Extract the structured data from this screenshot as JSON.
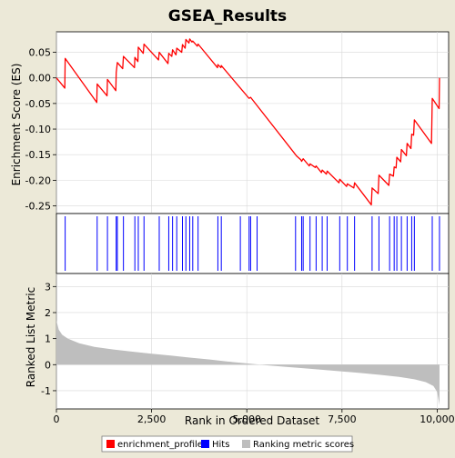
{
  "chart_data": {
    "type": "line",
    "title": "GSEA_Results",
    "xlabel": "Rank in Ordered Dataset",
    "xlim": [
      0,
      10300
    ],
    "xticks": [
      0,
      2500,
      5000,
      7500,
      10000
    ],
    "xtick_labels": [
      "0",
      "2,500",
      "5,000",
      "7,500",
      "10,000"
    ],
    "panels": {
      "enrichment": {
        "ylabel": "Enrichment Score (ES)",
        "ylim": [
          -0.265,
          0.09
        ],
        "yticks": [
          0.05,
          0.0,
          -0.05,
          -0.1,
          -0.15,
          -0.2,
          -0.25
        ],
        "ytick_labels": [
          "0.05",
          "0.00",
          "-0.05",
          "-0.10",
          "-0.15",
          "-0.20",
          "-0.25"
        ],
        "series": [
          {
            "name": "enrichment_profile",
            "color": "#FF0000",
            "points": [
              [
                0,
                0.0
              ],
              [
                220,
                -0.02
              ],
              [
                230,
                0.038
              ],
              [
                1060,
                -0.048
              ],
              [
                1070,
                -0.012
              ],
              [
                1330,
                -0.035
              ],
              [
                1340,
                -0.003
              ],
              [
                1560,
                -0.025
              ],
              [
                1570,
                0.01
              ],
              [
                1600,
                0.03
              ],
              [
                1740,
                0.018
              ],
              [
                1760,
                0.042
              ],
              [
                2050,
                0.02
              ],
              [
                2060,
                0.04
              ],
              [
                2140,
                0.032
              ],
              [
                2150,
                0.06
              ],
              [
                2280,
                0.048
              ],
              [
                2300,
                0.066
              ],
              [
                2680,
                0.035
              ],
              [
                2700,
                0.05
              ],
              [
                2930,
                0.028
              ],
              [
                2950,
                0.048
              ],
              [
                3030,
                0.042
              ],
              [
                3050,
                0.055
              ],
              [
                3140,
                0.045
              ],
              [
                3160,
                0.058
              ],
              [
                3290,
                0.05
              ],
              [
                3310,
                0.065
              ],
              [
                3380,
                0.058
              ],
              [
                3400,
                0.075
              ],
              [
                3480,
                0.068
              ],
              [
                3500,
                0.076
              ],
              [
                3560,
                0.07
              ],
              [
                3580,
                0.072
              ],
              [
                3700,
                0.062
              ],
              [
                3720,
                0.066
              ],
              [
                4230,
                0.02
              ],
              [
                4240,
                0.026
              ],
              [
                4320,
                0.02
              ],
              [
                4330,
                0.024
              ],
              [
                4830,
                -0.02
              ],
              [
                5060,
                -0.04
              ],
              [
                5100,
                -0.038
              ],
              [
                6280,
                -0.15
              ],
              [
                6300,
                -0.152
              ],
              [
                6420,
                -0.16
              ],
              [
                6440,
                -0.163
              ],
              [
                6480,
                -0.158
              ],
              [
                6640,
                -0.172
              ],
              [
                6660,
                -0.168
              ],
              [
                6800,
                -0.175
              ],
              [
                6820,
                -0.172
              ],
              [
                6960,
                -0.185
              ],
              [
                6980,
                -0.18
              ],
              [
                7090,
                -0.188
              ],
              [
                7110,
                -0.182
              ],
              [
                7420,
                -0.205
              ],
              [
                7440,
                -0.198
              ],
              [
                7620,
                -0.212
              ],
              [
                7640,
                -0.207
              ],
              [
                7810,
                -0.215
              ],
              [
                7830,
                -0.205
              ],
              [
                8270,
                -0.248
              ],
              [
                8290,
                -0.215
              ],
              [
                8450,
                -0.226
              ],
              [
                8470,
                -0.19
              ],
              [
                8730,
                -0.21
              ],
              [
                8750,
                -0.188
              ],
              [
                8850,
                -0.192
              ],
              [
                8870,
                -0.174
              ],
              [
                8920,
                -0.176
              ],
              [
                8940,
                -0.155
              ],
              [
                9040,
                -0.164
              ],
              [
                9060,
                -0.14
              ],
              [
                9190,
                -0.152
              ],
              [
                9210,
                -0.128
              ],
              [
                9310,
                -0.138
              ],
              [
                9330,
                -0.11
              ],
              [
                9380,
                -0.112
              ],
              [
                9400,
                -0.082
              ],
              [
                9850,
                -0.128
              ],
              [
                9870,
                -0.04
              ],
              [
                10050,
                -0.06
              ],
              [
                10060,
                0.0
              ]
            ]
          }
        ]
      },
      "hits": {
        "name": "Hits",
        "color": "#0000FF",
        "positions": [
          230,
          1070,
          1340,
          1570,
          1600,
          1760,
          2060,
          2150,
          2300,
          2700,
          2950,
          3050,
          3160,
          3310,
          3400,
          3500,
          3580,
          3720,
          4240,
          4330,
          4830,
          5060,
          5100,
          5270,
          6280,
          6440,
          6480,
          6660,
          6820,
          6980,
          7110,
          7440,
          7640,
          7830,
          8290,
          8470,
          8750,
          8870,
          8940,
          9060,
          9210,
          9330,
          9400,
          9870,
          10060
        ]
      },
      "ranking": {
        "name": "Ranking metric scores",
        "color": "#BEBEBE",
        "ylabel": "Ranked List Metric",
        "ylim": [
          -1.7,
          3.5
        ],
        "yticks": [
          3,
          2,
          1,
          0,
          -1
        ],
        "ytick_labels": [
          "3",
          "2",
          "1",
          "0",
          "-1"
        ],
        "curve": [
          [
            0,
            1.7
          ],
          [
            60,
            1.35
          ],
          [
            150,
            1.15
          ],
          [
            300,
            1.0
          ],
          [
            600,
            0.82
          ],
          [
            1000,
            0.68
          ],
          [
            1500,
            0.58
          ],
          [
            2000,
            0.5
          ],
          [
            2500,
            0.42
          ],
          [
            3000,
            0.35
          ],
          [
            3500,
            0.27
          ],
          [
            4000,
            0.2
          ],
          [
            4500,
            0.12
          ],
          [
            5000,
            0.05
          ],
          [
            5500,
            -0.02
          ],
          [
            6000,
            -0.08
          ],
          [
            6500,
            -0.14
          ],
          [
            7000,
            -0.2
          ],
          [
            7500,
            -0.26
          ],
          [
            8000,
            -0.32
          ],
          [
            8500,
            -0.39
          ],
          [
            9000,
            -0.47
          ],
          [
            9400,
            -0.56
          ],
          [
            9700,
            -0.67
          ],
          [
            9900,
            -0.82
          ],
          [
            10000,
            -1.05
          ],
          [
            10060,
            -1.55
          ]
        ]
      }
    },
    "legend": {
      "placement": "bottom",
      "items": [
        {
          "label": "enrichment_profile",
          "color": "#FF0000"
        },
        {
          "label": "Hits",
          "color": "#0000FF"
        },
        {
          "label": "Ranking metric scores",
          "color": "#BEBEBE"
        }
      ]
    }
  }
}
